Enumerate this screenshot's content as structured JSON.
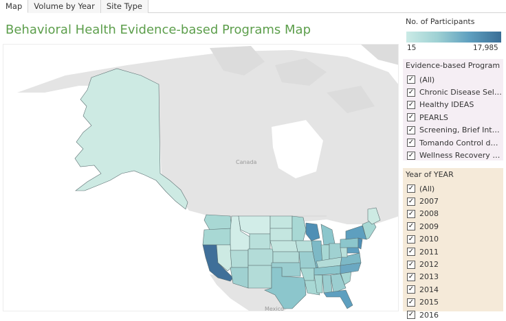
{
  "tabs": [
    "Map",
    "Volume by Year",
    "Site Type"
  ],
  "title": "Behavioral Health Evidence-based Programs Map",
  "legend": {
    "title": "No. of Participants",
    "min": "15",
    "max": "17,985",
    "colors": [
      "#cbebe6",
      "#9dd0d3",
      "#5e9fbf",
      "#3a6e96"
    ]
  },
  "map_labels": {
    "canada": "Canada",
    "mexico": "Mexico"
  },
  "filter_program": {
    "title": "Evidence-based Program",
    "items": [
      "(All)",
      "Chronic Disease Self-...",
      "Healthy IDEAS",
      "PEARLS",
      "Screening, Brief Inter...",
      "Tomando Control de s...",
      "Wellness Recovery Ac..."
    ]
  },
  "filter_year": {
    "title": "Year of YEAR",
    "items": [
      "(All)",
      "2007",
      "2008",
      "2009",
      "2010",
      "2011",
      "2012",
      "2013",
      "2014",
      "2015",
      "2016"
    ]
  },
  "checkmark": "✓"
}
